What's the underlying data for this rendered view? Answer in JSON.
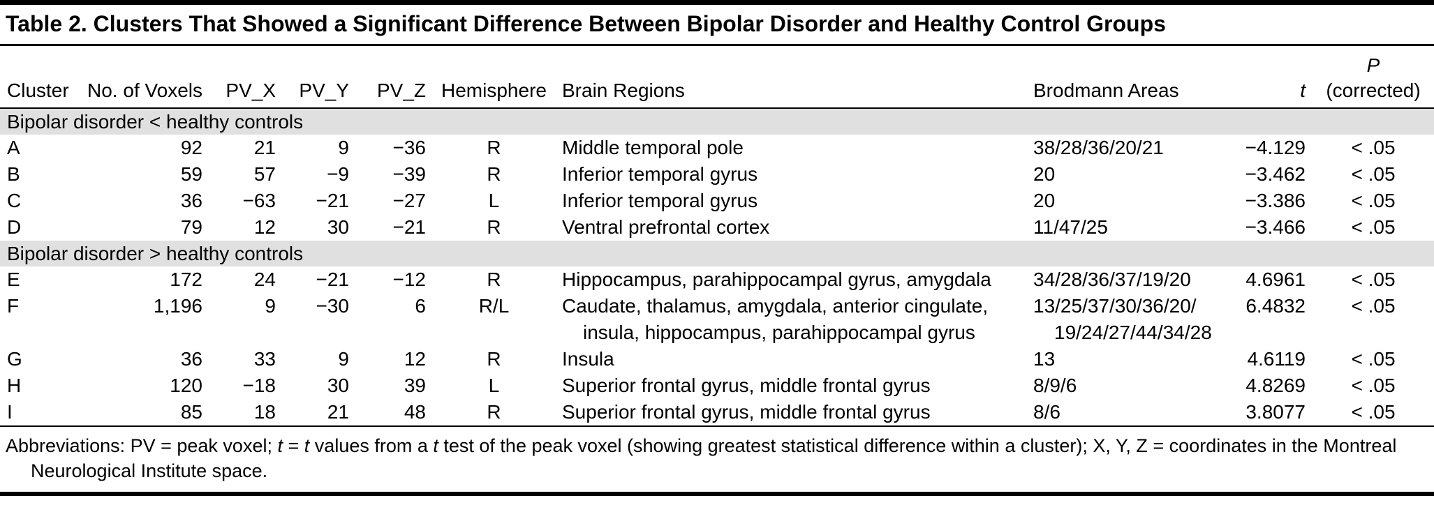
{
  "title": "Table 2. Clusters That Showed a Significant Difference Between Bipolar Disorder and Healthy Control Groups",
  "colors": {
    "section_band": "#e0e0e0",
    "rule": "#000000",
    "text": "#000000",
    "background": "#ffffff"
  },
  "table": {
    "columns": [
      {
        "key": "cluster",
        "label": "Cluster",
        "align": "left"
      },
      {
        "key": "voxels",
        "label": "No. of Voxels",
        "align": "right"
      },
      {
        "key": "pvx",
        "label": "PV_X",
        "align": "right"
      },
      {
        "key": "pvy",
        "label": "PV_Y",
        "align": "right"
      },
      {
        "key": "pvz",
        "label": "PV_Z",
        "align": "right"
      },
      {
        "key": "hemisphere",
        "label": "Hemisphere",
        "align": "center"
      },
      {
        "key": "regions",
        "label": "Brain Regions",
        "align": "left"
      },
      {
        "key": "brodmann",
        "label": "Brodmann Areas",
        "align": "left"
      },
      {
        "key": "t",
        "label": "t",
        "align": "right",
        "italic": true
      },
      {
        "key": "p",
        "label": "P",
        "sublabel": "(corrected)",
        "align": "center",
        "italic": true
      }
    ],
    "sections": [
      {
        "header": "Bipolar disorder < healthy controls",
        "rows": [
          {
            "cluster": "A",
            "voxels": "92",
            "pvx": "21",
            "pvy": "9",
            "pvz": "−36",
            "hemisphere": "R",
            "regions": "Middle temporal pole",
            "brodmann": "38/28/36/20/21",
            "t": "−4.129",
            "p": "< .05"
          },
          {
            "cluster": "B",
            "voxels": "59",
            "pvx": "57",
            "pvy": "−9",
            "pvz": "−39",
            "hemisphere": "R",
            "regions": "Inferior temporal gyrus",
            "brodmann": "20",
            "t": "−3.462",
            "p": "< .05"
          },
          {
            "cluster": "C",
            "voxels": "36",
            "pvx": "−63",
            "pvy": "−21",
            "pvz": "−27",
            "hemisphere": "L",
            "regions": "Inferior temporal gyrus",
            "brodmann": "20",
            "t": "−3.386",
            "p": "< .05"
          },
          {
            "cluster": "D",
            "voxels": "79",
            "pvx": "12",
            "pvy": "30",
            "pvz": "−21",
            "hemisphere": "R",
            "regions": "Ventral prefrontal cortex",
            "brodmann": "11/47/25",
            "t": "−3.466",
            "p": "< .05"
          }
        ]
      },
      {
        "header": "Bipolar disorder > healthy controls",
        "rows": [
          {
            "cluster": "E",
            "voxels": "172",
            "pvx": "24",
            "pvy": "−21",
            "pvz": "−12",
            "hemisphere": "R",
            "regions": "Hippocampus, parahippocampal gyrus, amygdala",
            "brodmann": "34/28/36/37/19/20",
            "t": "4.6961",
            "p": "< .05"
          },
          {
            "cluster": "F",
            "voxels": "1,196",
            "pvx": "9",
            "pvy": "−30",
            "pvz": "6",
            "hemisphere": "R/L",
            "regions": "Caudate, thalamus, amygdala, anterior cingulate,\ninsula, hippocampus, parahippocampal gyrus",
            "brodmann": "13/25/37/30/36/20/\n19/24/27/44/34/28",
            "t": "6.4832",
            "p": "< .05"
          },
          {
            "cluster": "G",
            "voxels": "36",
            "pvx": "33",
            "pvy": "9",
            "pvz": "12",
            "hemisphere": "R",
            "regions": "Insula",
            "brodmann": "13",
            "t": "4.6119",
            "p": "< .05"
          },
          {
            "cluster": "H",
            "voxels": "120",
            "pvx": "−18",
            "pvy": "30",
            "pvz": "39",
            "hemisphere": "L",
            "regions": "Superior frontal gyrus, middle frontal gyrus",
            "brodmann": "8/9/6",
            "t": "4.8269",
            "p": "< .05"
          },
          {
            "cluster": "I",
            "voxels": "85",
            "pvx": "18",
            "pvy": "21",
            "pvz": "48",
            "hemisphere": "R",
            "regions": "Superior frontal gyrus, middle frontal gyrus",
            "brodmann": "8/6",
            "t": "3.8077",
            "p": "< .05"
          }
        ]
      }
    ]
  },
  "footnote_segments": [
    {
      "t": "Abbreviations: PV = peak voxel; "
    },
    {
      "t": "t",
      "i": true
    },
    {
      "t": " = "
    },
    {
      "t": "t",
      "i": true
    },
    {
      "t": " values from a "
    },
    {
      "t": "t",
      "i": true
    },
    {
      "t": " test of the peak voxel (showing greatest statistical difference within a cluster); X, Y, Z = coordinates in the Montreal Neurological Institute space."
    }
  ]
}
